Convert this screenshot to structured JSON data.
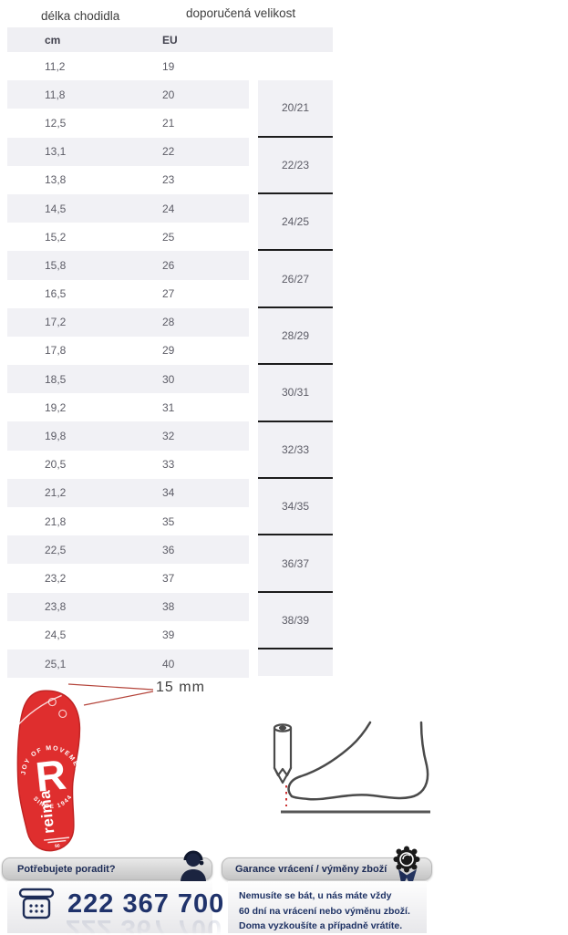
{
  "page": {
    "title_left": "délka chodidla",
    "title_right": "doporučená velikost"
  },
  "table": {
    "col_cm": "cm",
    "col_eu": "EU",
    "rows": [
      {
        "cm": "11,2",
        "eu": "19"
      },
      {
        "cm": "11,8",
        "eu": "20"
      },
      {
        "cm": "12,5",
        "eu": "21"
      },
      {
        "cm": "13,1",
        "eu": "22"
      },
      {
        "cm": "13,8",
        "eu": "23"
      },
      {
        "cm": "14,5",
        "eu": "24"
      },
      {
        "cm": "15,2",
        "eu": "25"
      },
      {
        "cm": "15,8",
        "eu": "26"
      },
      {
        "cm": "16,5",
        "eu": "27"
      },
      {
        "cm": "17,2",
        "eu": "28"
      },
      {
        "cm": "17,8",
        "eu": "29"
      },
      {
        "cm": "18,5",
        "eu": "30"
      },
      {
        "cm": "19,2",
        "eu": "31"
      },
      {
        "cm": "19,8",
        "eu": "32"
      },
      {
        "cm": "20,5",
        "eu": "33"
      },
      {
        "cm": "21,2",
        "eu": "34"
      },
      {
        "cm": "21,8",
        "eu": "35"
      },
      {
        "cm": "22,5",
        "eu": "36"
      },
      {
        "cm": "23,2",
        "eu": "37"
      },
      {
        "cm": "23,8",
        "eu": "38"
      },
      {
        "cm": "24,5",
        "eu": "39"
      },
      {
        "cm": "25,1",
        "eu": "40"
      }
    ],
    "groups": [
      "20/21",
      "22/23",
      "24/25",
      "26/27",
      "28/29",
      "30/31",
      "32/33",
      "34/35",
      "36/37",
      "38/39"
    ]
  },
  "insole": {
    "annotation": "15 mm",
    "brand": "reima",
    "logo_arc_top": "JOY OF MOVEMENT",
    "logo_arc_bottom": "SINCE 1944",
    "logo_letter": "R",
    "color": "#df2e2e"
  },
  "icons": {
    "help_header": "support-agent-icon",
    "phone": "phone-icon",
    "guarantee_header": "award-badge-icon",
    "measuring": "pencil-and-foot-diagram"
  },
  "help_box": {
    "title": "Potřebujete poradit?",
    "phone": "222 367 700"
  },
  "guarantee_box": {
    "title": "Garance vrácení / výměny zboží",
    "lines": [
      "Nemusíte se bát, u nás máte vždy",
      "60 dní na vrácení nebo výměnu zboží.",
      "Doma vyzkoušíte a případně vrátíte."
    ]
  },
  "colors": {
    "accent_red": "#df2e2e",
    "navy_text": "#20336b",
    "row_stripe": "#f1f1f5",
    "group_divider": "#1c1c1c"
  }
}
